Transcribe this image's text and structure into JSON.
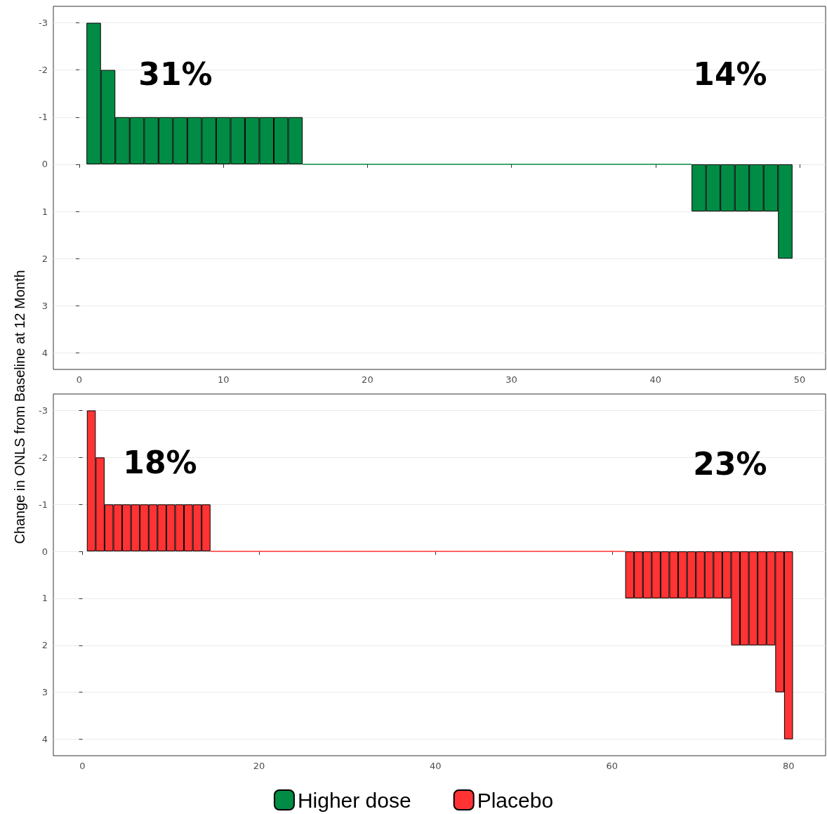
{
  "chart_data": [
    {
      "type": "bar",
      "ylabel": "Change in ONLS from Baseline at 12 Month",
      "x": [
        1,
        2,
        3,
        4,
        5,
        6,
        7,
        8,
        9,
        10,
        11,
        12,
        13,
        14,
        15,
        16,
        17,
        18,
        19,
        20,
        21,
        22,
        23,
        24,
        25,
        26,
        27,
        28,
        29,
        30,
        31,
        32,
        33,
        34,
        35,
        36,
        37,
        38,
        39,
        40,
        41,
        42,
        43,
        44,
        45,
        46,
        47,
        48,
        49
      ],
      "series": [
        {
          "name": "Higher dose",
          "color": "#008c45",
          "values": [
            -3,
            -2,
            -1,
            -1,
            -1,
            -1,
            -1,
            -1,
            -1,
            -1,
            -1,
            -1,
            -1,
            -1,
            -1,
            0,
            0,
            0,
            0,
            0,
            0,
            0,
            0,
            0,
            0,
            0,
            0,
            0,
            0,
            0,
            0,
            0,
            0,
            0,
            0,
            0,
            0,
            0,
            0,
            0,
            0,
            0,
            1,
            1,
            1,
            1,
            1,
            1,
            2
          ]
        }
      ],
      "xlim": [
        -1.8,
        51.8
      ],
      "xticks": [
        0,
        10,
        20,
        30,
        40,
        50
      ],
      "ylim": [
        4.35,
        -3.35
      ],
      "yticks": [
        -3,
        -2,
        -1,
        0,
        1,
        2,
        3,
        4
      ],
      "grid": "y",
      "legend": "bottom",
      "annotations": [
        "31%",
        "14%"
      ]
    },
    {
      "type": "bar",
      "x": [
        1,
        2,
        3,
        4,
        5,
        6,
        7,
        8,
        9,
        10,
        11,
        12,
        13,
        14,
        15,
        16,
        17,
        18,
        19,
        20,
        21,
        22,
        23,
        24,
        25,
        26,
        27,
        28,
        29,
        30,
        31,
        32,
        33,
        34,
        35,
        36,
        37,
        38,
        39,
        40,
        41,
        42,
        43,
        44,
        45,
        46,
        47,
        48,
        49,
        50,
        51,
        52,
        53,
        54,
        55,
        56,
        57,
        58,
        59,
        60,
        61,
        62,
        63,
        64,
        65,
        66,
        67,
        68,
        69,
        70,
        71,
        72,
        73,
        74,
        75,
        76,
        77,
        78,
        79,
        80
      ],
      "series": [
        {
          "name": "Placebo",
          "color": "#ff3333",
          "values": [
            -3,
            -2,
            -1,
            -1,
            -1,
            -1,
            -1,
            -1,
            -1,
            -1,
            -1,
            -1,
            -1,
            -1,
            0,
            0,
            0,
            0,
            0,
            0,
            0,
            0,
            0,
            0,
            0,
            0,
            0,
            0,
            0,
            0,
            0,
            0,
            0,
            0,
            0,
            0,
            0,
            0,
            0,
            0,
            0,
            0,
            0,
            0,
            0,
            0,
            0,
            0,
            0,
            0,
            0,
            0,
            0,
            0,
            0,
            0,
            0,
            0,
            0,
            0,
            0,
            1,
            1,
            1,
            1,
            1,
            1,
            1,
            1,
            1,
            1,
            1,
            1,
            2,
            2,
            2,
            2,
            2,
            3,
            4
          ]
        }
      ],
      "xlim": [
        -3.3,
        84.2
      ],
      "xticks": [
        0,
        20,
        40,
        60,
        80
      ],
      "ylim": [
        4.35,
        -3.35
      ],
      "yticks": [
        -3,
        -2,
        -1,
        0,
        1,
        2,
        3,
        4
      ],
      "grid": "y",
      "legend": "bottom",
      "annotations": [
        "18%",
        "23%"
      ]
    }
  ]
}
